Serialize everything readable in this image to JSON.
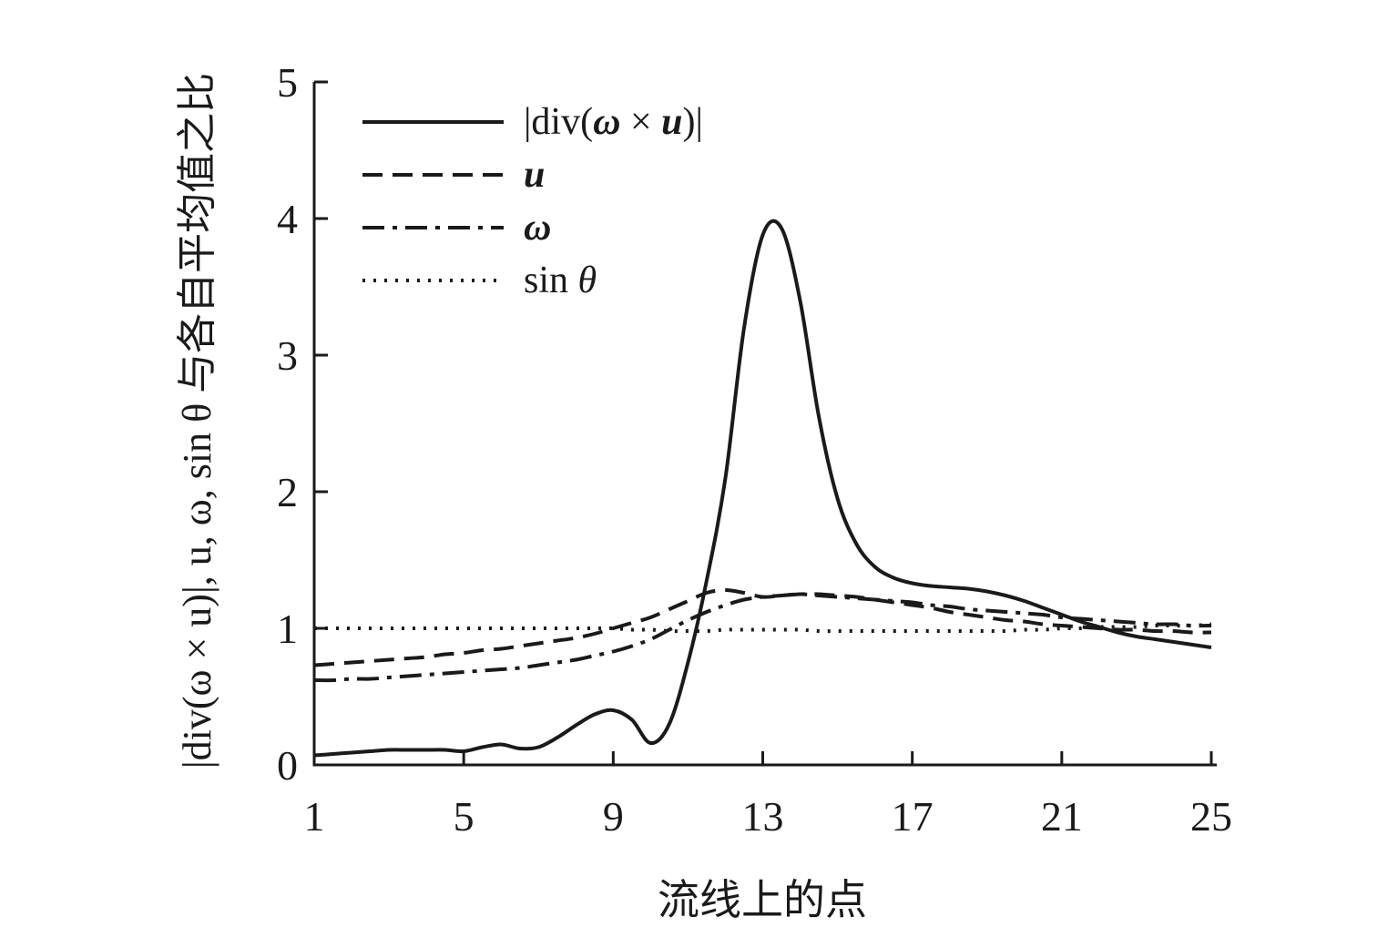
{
  "chart_data": {
    "type": "line",
    "title": "",
    "xlabel": "流线上的点",
    "ylabel": "|div(ω × u)|, u, ω, sin θ 与各自平均值之比",
    "xlim": [
      1,
      25
    ],
    "ylim": [
      0,
      5
    ],
    "x_ticks": [
      1,
      5,
      9,
      13,
      17,
      21,
      25
    ],
    "y_ticks": [
      0,
      1,
      2,
      3,
      4,
      5
    ],
    "grid": false,
    "legend_position": "top-left-inside",
    "line_color": "#1a1a1a",
    "x": [
      1,
      1.5,
      2,
      2.5,
      3,
      3.5,
      4,
      4.5,
      5,
      5.5,
      6,
      6.5,
      7,
      7.5,
      8,
      8.5,
      9,
      9.5,
      10,
      10.5,
      11,
      11.5,
      12,
      12.5,
      13,
      13.5,
      14,
      14.5,
      15,
      15.5,
      16,
      16.5,
      17,
      17.5,
      18,
      18.5,
      19,
      19.5,
      20,
      20.5,
      21,
      21.5,
      22,
      22.5,
      23,
      23.5,
      24,
      24.5,
      25
    ],
    "series": [
      {
        "name": "div-omega-cross-u",
        "label_runs": [
          {
            "text": "|div(",
            "style": "normal"
          },
          {
            "text": "ω",
            "style": "bolditalic"
          },
          {
            "text": " × ",
            "style": "normal"
          },
          {
            "text": "u",
            "style": "bolditalic"
          },
          {
            "text": ")|",
            "style": "normal"
          }
        ],
        "dash": [],
        "width": 4,
        "values": [
          0.07,
          0.08,
          0.09,
          0.1,
          0.11,
          0.11,
          0.11,
          0.11,
          0.1,
          0.13,
          0.15,
          0.12,
          0.13,
          0.2,
          0.29,
          0.37,
          0.4,
          0.33,
          0.16,
          0.3,
          0.75,
          1.35,
          2.1,
          3.2,
          3.88,
          3.93,
          3.4,
          2.55,
          1.95,
          1.62,
          1.45,
          1.37,
          1.33,
          1.31,
          1.3,
          1.29,
          1.27,
          1.24,
          1.2,
          1.15,
          1.1,
          1.05,
          1.01,
          0.97,
          0.94,
          0.92,
          0.9,
          0.88,
          0.86
        ]
      },
      {
        "name": "u",
        "label_runs": [
          {
            "text": "u",
            "style": "bolditalic"
          }
        ],
        "dash": [
          22,
          11
        ],
        "width": 4,
        "values": [
          0.73,
          0.74,
          0.75,
          0.76,
          0.77,
          0.78,
          0.79,
          0.81,
          0.82,
          0.84,
          0.85,
          0.87,
          0.89,
          0.91,
          0.93,
          0.96,
          1.0,
          1.04,
          1.08,
          1.14,
          1.2,
          1.26,
          1.28,
          1.26,
          1.23,
          1.24,
          1.25,
          1.25,
          1.24,
          1.23,
          1.21,
          1.19,
          1.17,
          1.15,
          1.12,
          1.1,
          1.08,
          1.06,
          1.05,
          1.03,
          1.02,
          1.01,
          1.0,
          0.99,
          0.99,
          0.98,
          0.98,
          0.97,
          0.97
        ]
      },
      {
        "name": "omega",
        "label_runs": [
          {
            "text": "ω",
            "style": "bolditalic"
          }
        ],
        "dash": [
          24,
          9,
          5,
          9
        ],
        "width": 4,
        "values": [
          0.62,
          0.62,
          0.63,
          0.63,
          0.64,
          0.65,
          0.66,
          0.67,
          0.68,
          0.69,
          0.7,
          0.71,
          0.73,
          0.75,
          0.77,
          0.8,
          0.83,
          0.87,
          0.92,
          0.99,
          1.06,
          1.12,
          1.17,
          1.21,
          1.23,
          1.24,
          1.25,
          1.24,
          1.23,
          1.22,
          1.21,
          1.2,
          1.19,
          1.17,
          1.16,
          1.14,
          1.13,
          1.12,
          1.11,
          1.1,
          1.08,
          1.07,
          1.06,
          1.05,
          1.04,
          1.03,
          1.03,
          1.02,
          1.02
        ]
      },
      {
        "name": "sin-theta",
        "label_runs": [
          {
            "text": "sin ",
            "style": "normal"
          },
          {
            "text": "θ",
            "style": "italic"
          }
        ],
        "dash": [
          3,
          9
        ],
        "width": 4,
        "values": [
          1.0,
          1.0,
          1.0,
          1.0,
          1.0,
          1.0,
          1.0,
          1.0,
          1.0,
          1.0,
          1.0,
          1.0,
          1.0,
          1.0,
          1.0,
          1.0,
          1.0,
          0.99,
          0.99,
          0.98,
          0.98,
          0.98,
          0.99,
          0.99,
          0.99,
          0.99,
          0.99,
          0.98,
          0.98,
          0.98,
          0.98,
          0.98,
          0.98,
          0.98,
          0.98,
          0.98,
          0.98,
          0.98,
          0.99,
          0.99,
          1.0,
          1.0,
          1.01,
          1.01,
          1.01,
          1.02,
          1.02,
          1.02,
          1.03
        ]
      }
    ]
  }
}
